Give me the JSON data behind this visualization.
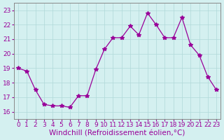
{
  "hours": [
    0,
    1,
    2,
    3,
    4,
    5,
    6,
    7,
    8,
    9,
    10,
    11,
    12,
    13,
    14,
    15,
    16,
    17,
    18,
    19,
    20,
    21,
    22,
    23
  ],
  "values": [
    19.0,
    18.8,
    17.5,
    16.5,
    16.4,
    16.4,
    16.3,
    17.1,
    17.1,
    18.9,
    20.3,
    21.1,
    21.1,
    21.9,
    21.3,
    22.8,
    22.0,
    21.1,
    21.1,
    22.5,
    20.6,
    19.9,
    18.4,
    17.5
  ],
  "ylim": [
    15.5,
    23.5
  ],
  "yticks": [
    16,
    17,
    18,
    19,
    20,
    21,
    22,
    23
  ],
  "xticks": [
    0,
    1,
    2,
    3,
    4,
    5,
    6,
    7,
    8,
    9,
    10,
    11,
    12,
    13,
    14,
    15,
    16,
    17,
    18,
    19,
    20,
    21,
    22,
    23
  ],
  "xlabel": "Windchill (Refroidissement éolien,°C)",
  "line_color": "#990099",
  "marker": "*",
  "marker_size": 4,
  "bg_color": "#d4f0f0",
  "grid_color": "#b0d8d8",
  "axis_color": "#888888",
  "xlabel_color": "#990099",
  "xlabel_fontsize": 7.5,
  "tick_fontsize": 6.5,
  "tick_color": "#990099"
}
